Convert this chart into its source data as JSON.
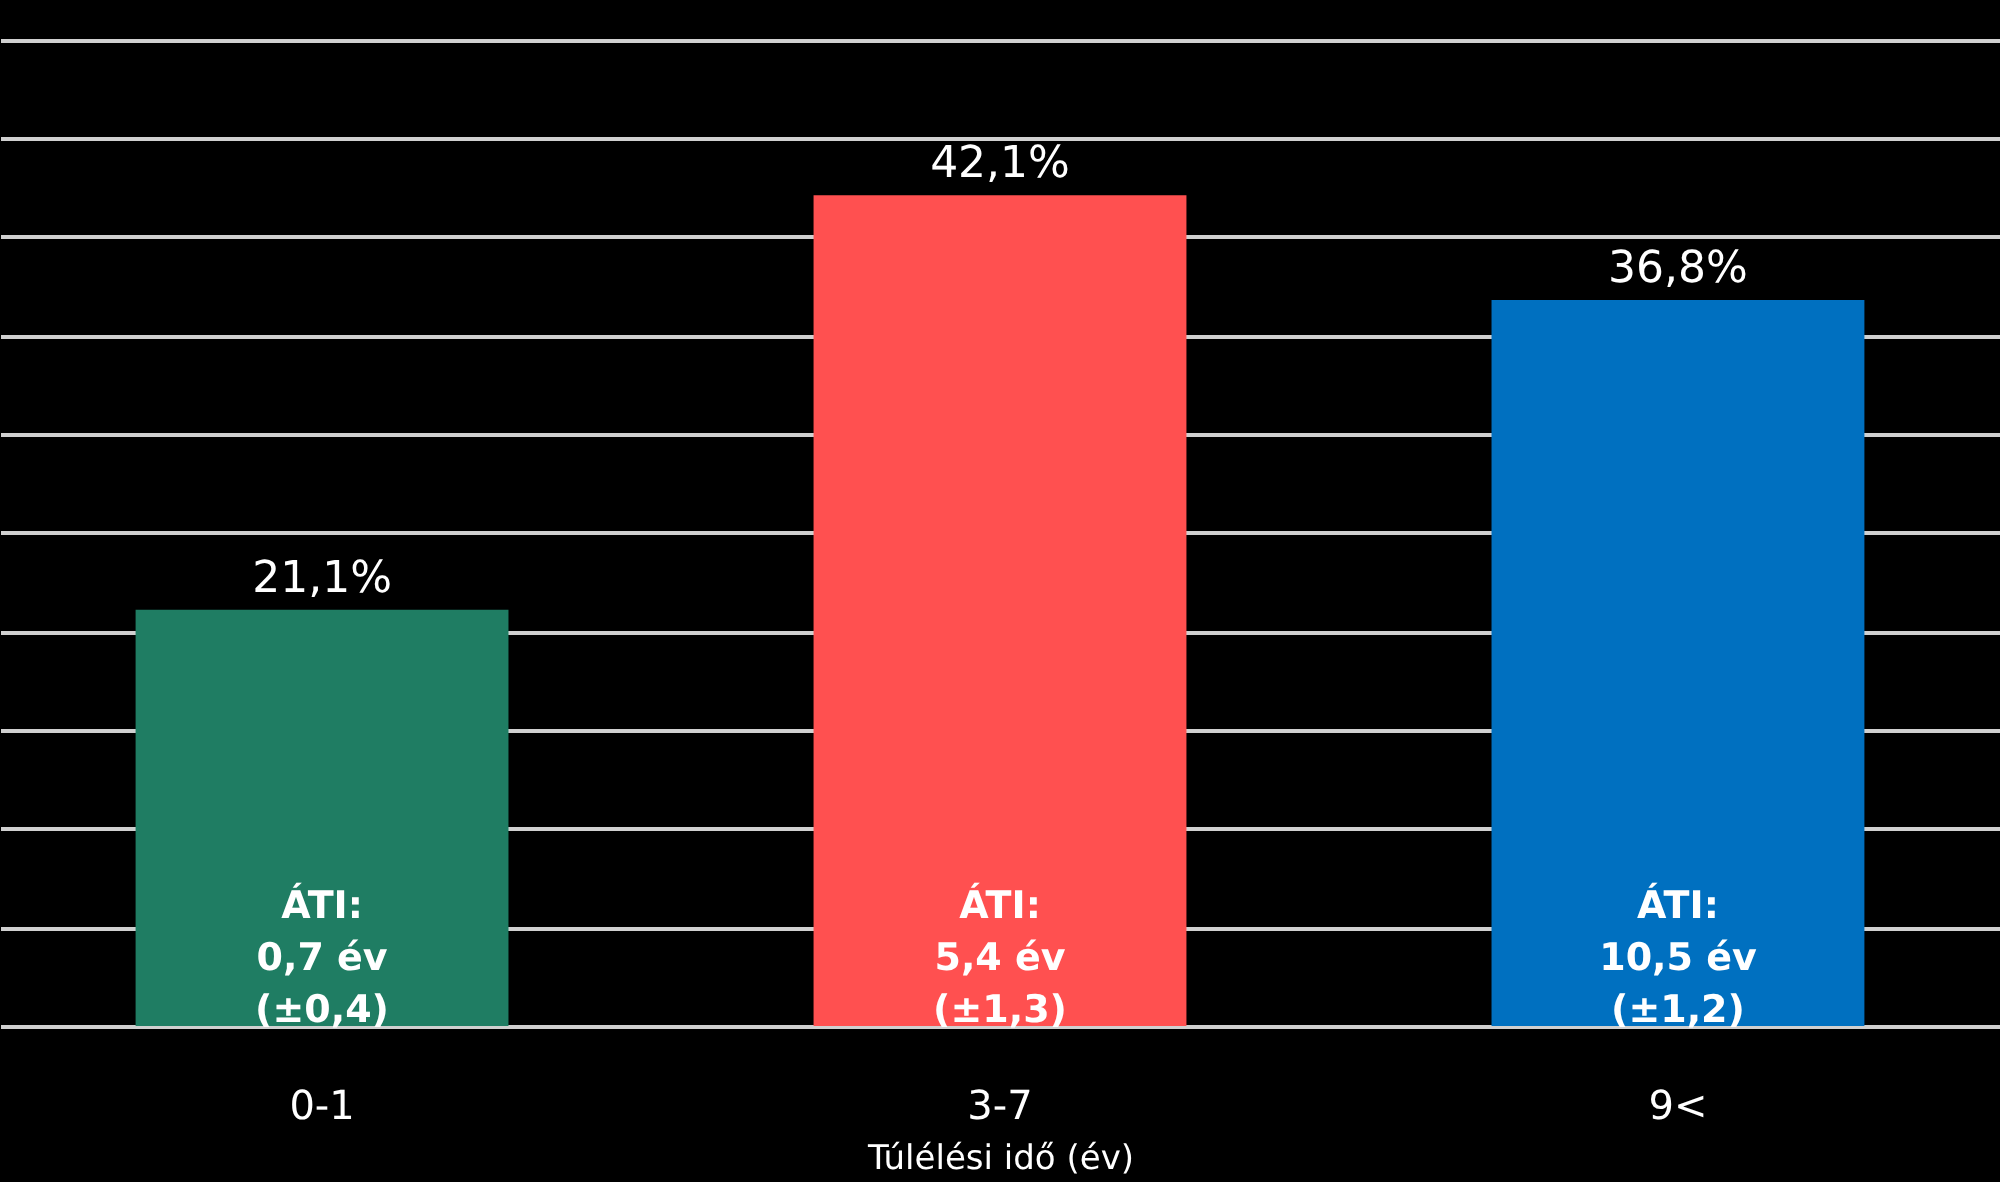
{
  "chart_data": {
    "type": "bar",
    "xlabel": "Túlélési idő (év)",
    "categories": [
      "0-1",
      "3-7",
      "9<"
    ],
    "values": [
      21.1,
      42.1,
      36.8
    ],
    "colors": [
      "#1f7d63",
      "#ff5050",
      "#0070c0"
    ],
    "value_labels": [
      "21,1%",
      "42,1%",
      "36,8%"
    ],
    "ylim": [
      0,
      52
    ],
    "yticks": [
      {
        "value": 0,
        "label": null
      },
      {
        "value": 5,
        "label": null
      },
      {
        "value": 10,
        "label": null
      },
      {
        "value": 15,
        "label": null
      },
      {
        "value": 20,
        "label": null
      },
      {
        "value": 25,
        "label": null
      },
      {
        "value": 30,
        "label": null
      },
      {
        "value": 35,
        "label": null
      },
      {
        "value": 40,
        "label": null
      },
      {
        "value": 45,
        "label": null
      },
      {
        "value": 50,
        "label": null
      }
    ],
    "grid": "y",
    "tick_labels": "x",
    "annotations": [
      "ÁTI:\n0,7 év\n(±0,4)",
      "ÁTI:\n5,4 év\n(±1,3)",
      "ÁTI:\n10,5 év\n(±1,2)"
    ]
  }
}
